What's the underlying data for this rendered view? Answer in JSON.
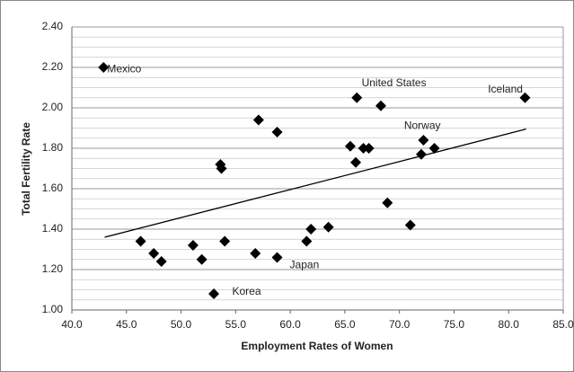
{
  "chart_data": {
    "type": "scatter",
    "x_label": "Employment Rates of Women",
    "y_label": "Total Fertility Rate",
    "color": "#000000",
    "grid": true,
    "minor_grid_step": 0.05,
    "xlim": [
      40,
      85
    ],
    "ylim": [
      1,
      2.4
    ],
    "xticks": [
      {
        "value": 40,
        "label": "40.0"
      },
      {
        "value": 45,
        "label": "45.0"
      },
      {
        "value": 50,
        "label": "50.0"
      },
      {
        "value": 55,
        "label": "55.0"
      },
      {
        "value": 60,
        "label": "60.0"
      },
      {
        "value": 65,
        "label": "65.0"
      },
      {
        "value": 70,
        "label": "70.0"
      },
      {
        "value": 75,
        "label": "75.0"
      },
      {
        "value": 80,
        "label": "80.0"
      },
      {
        "value": 85,
        "label": "85.0"
      }
    ],
    "yticks": [
      {
        "value": 1,
        "label": "1.00"
      },
      {
        "value": 1.2,
        "label": "1.20"
      },
      {
        "value": 1.4,
        "label": "1.40"
      },
      {
        "value": 1.6,
        "label": "1.60"
      },
      {
        "value": 1.8,
        "label": "1.80"
      },
      {
        "value": 2,
        "label": "2.00"
      },
      {
        "value": 2.2,
        "label": "2.20"
      },
      {
        "value": 2.4,
        "label": "2.40"
      }
    ],
    "x": [
      42.9,
      46.3,
      47.5,
      48.2,
      51.1,
      51.9,
      53.6,
      53.7,
      54.0,
      53.0,
      56.8,
      57.1,
      58.8,
      58.8,
      61.5,
      61.9,
      63.5,
      65.5,
      66.0,
      66.1,
      66.7,
      67.2,
      68.3,
      68.9,
      71.0,
      72.0,
      72.2,
      73.2,
      81.5
    ],
    "values": [
      2.2,
      1.34,
      1.28,
      1.24,
      1.32,
      1.25,
      1.72,
      1.7,
      1.34,
      1.08,
      1.28,
      1.94,
      1.88,
      1.26,
      1.34,
      1.4,
      1.41,
      1.81,
      1.73,
      2.05,
      1.8,
      1.8,
      2.01,
      1.53,
      1.42,
      1.77,
      1.84,
      1.8,
      2.05
    ],
    "trendline": {
      "x": [
        43.0,
        81.6
      ],
      "y": [
        1.36,
        1.895
      ]
    },
    "annotations": [
      {
        "text": "Mexico",
        "x": 44.8,
        "y": 2.19
      },
      {
        "text": "United States",
        "x": 69.5,
        "y": 2.12
      },
      {
        "text": "Iceland",
        "x": 79.7,
        "y": 2.09
      },
      {
        "text": "Norway",
        "x": 72.1,
        "y": 1.91
      },
      {
        "text": "Japan",
        "x": 61.3,
        "y": 1.22
      },
      {
        "text": "Korea",
        "x": 56.0,
        "y": 1.09
      }
    ]
  }
}
